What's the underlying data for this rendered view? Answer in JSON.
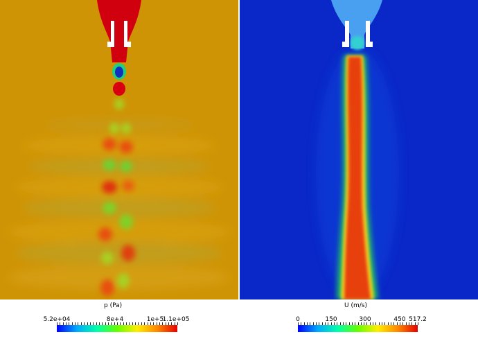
{
  "panels": [
    {
      "field": "pressure",
      "colorbar": {
        "title": "p (Pa)",
        "tick_labels": [
          "5.2e+04",
          "8e+4",
          "1e+5",
          "1.1e+05"
        ],
        "tick_values": [
          52000,
          80000,
          100000,
          110000
        ],
        "range": [
          52000,
          110000
        ]
      },
      "background_color": "#cf9406",
      "nozzle_color": "#d0000e"
    },
    {
      "field": "velocity",
      "colorbar": {
        "title": "U  (m/s)",
        "tick_labels": [
          "0",
          "150",
          "300",
          "450",
          "517.2"
        ],
        "tick_values": [
          0,
          150,
          300,
          450,
          517.2
        ],
        "range": [
          0,
          517.2
        ]
      },
      "background_color": "#0a28c8",
      "jet_core_color": "#e8400e"
    }
  ],
  "colormap": [
    "#0000ff",
    "#00aaff",
    "#00ffaa",
    "#66ff00",
    "#ffee00",
    "#ff8800",
    "#e60000"
  ]
}
